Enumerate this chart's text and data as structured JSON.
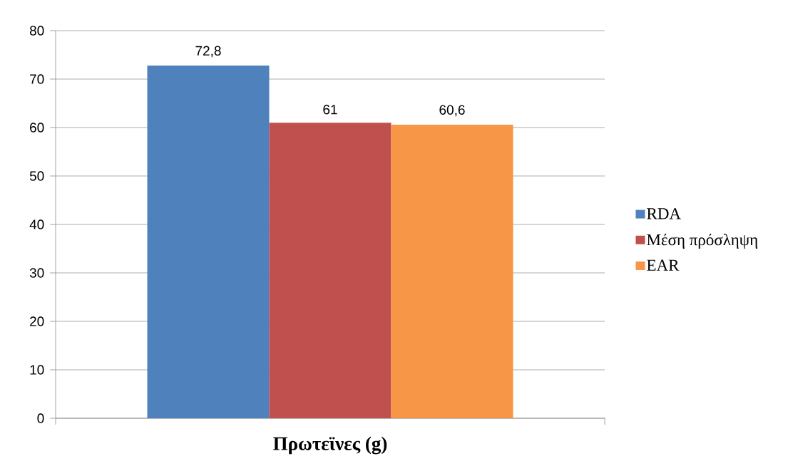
{
  "chart_data": {
    "type": "bar",
    "categories": [
      "Πρωτεϊνες (g)"
    ],
    "series": [
      {
        "name": "RDA",
        "color": "#4f81bd",
        "values": [
          72.8
        ],
        "value_labels": [
          "72,8"
        ]
      },
      {
        "name": "Μέση πρόσληψη",
        "color": "#c0504d",
        "values": [
          61
        ],
        "value_labels": [
          "61"
        ]
      },
      {
        "name": "EAR",
        "color": "#f79646",
        "values": [
          60.6
        ],
        "value_labels": [
          "60,6"
        ]
      }
    ],
    "ylim": [
      0,
      80
    ],
    "yticks": [
      0,
      10,
      20,
      30,
      40,
      50,
      60,
      70,
      80
    ],
    "grid": "y",
    "legend": "right"
  }
}
